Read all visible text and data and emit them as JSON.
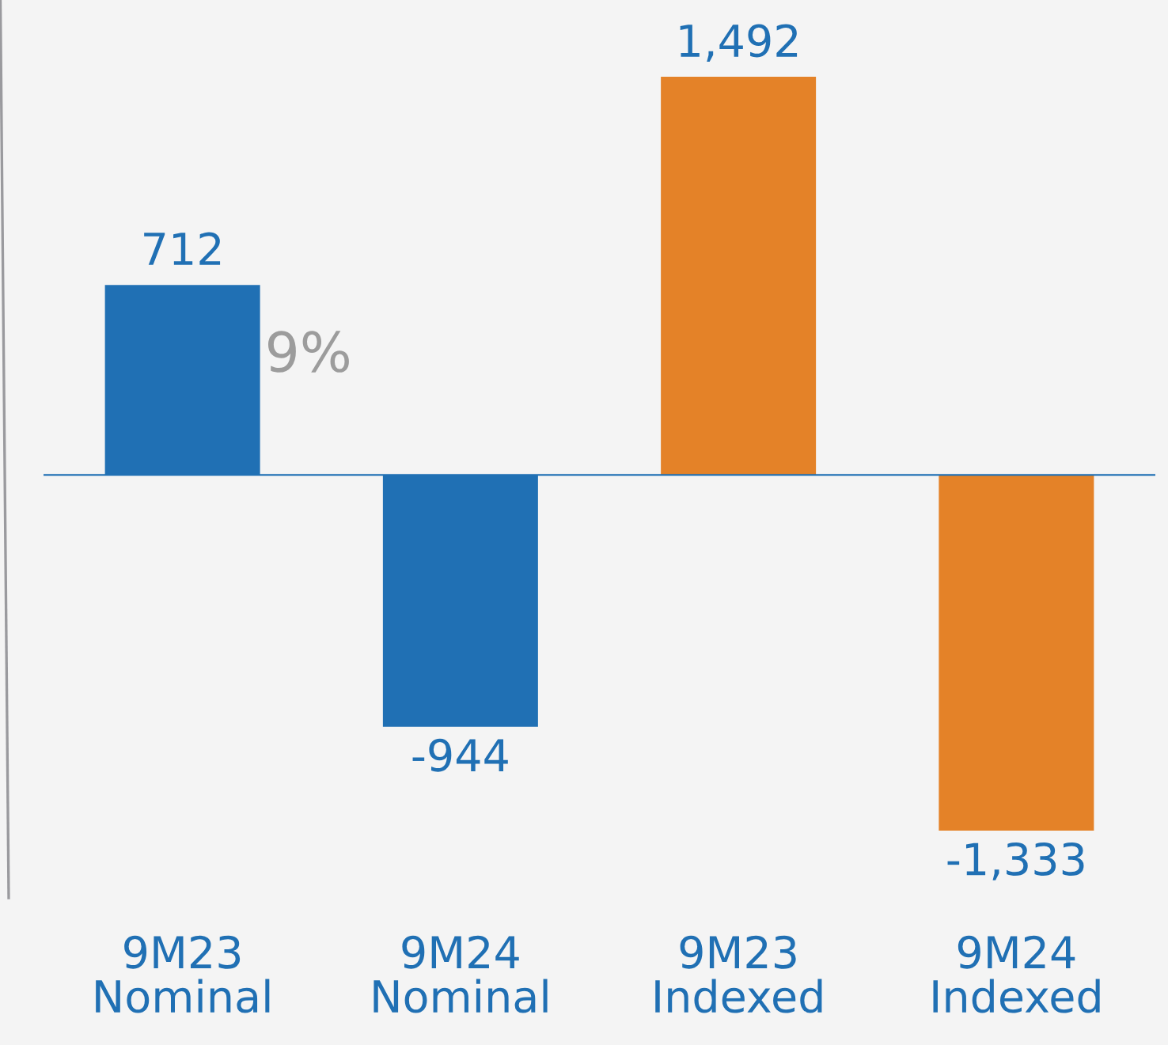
{
  "chart_data": {
    "type": "bar",
    "categories": [
      "9M23\nNominal",
      "9M24\nNominal",
      "9M23\nIndexed",
      "9M24\nIndexed"
    ],
    "values": [
      712,
      -944,
      1492,
      -1333
    ],
    "colors": [
      "#2070b4",
      "#2070b4",
      "#e48228",
      "#e48228"
    ],
    "value_labels": [
      "712",
      "-944",
      "1,492",
      "-1,333"
    ],
    "ref_lines": [
      {
        "axis": "y",
        "value": 0,
        "color": "#2070b4"
      }
    ],
    "tick_labels": "x",
    "annotations": [
      "9%"
    ]
  }
}
